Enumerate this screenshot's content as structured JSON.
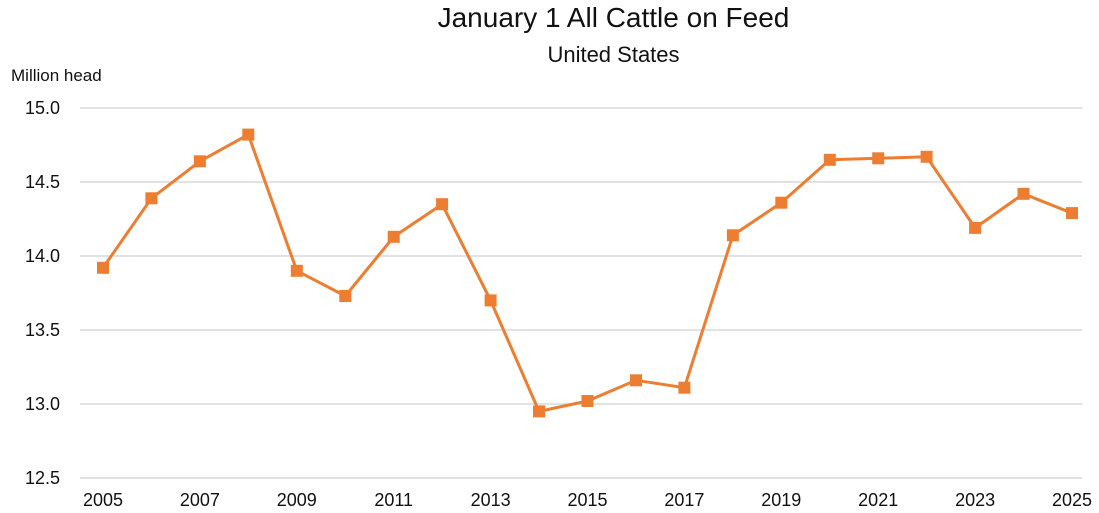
{
  "chart_data": {
    "type": "line",
    "title": "January 1 All Cattle on Feed",
    "subtitle": "United States",
    "ylabel": "Million head",
    "xlabel": "",
    "ylim": [
      12.5,
      15.0
    ],
    "yticks": [
      12.5,
      13.0,
      13.5,
      14.0,
      14.5,
      15.0
    ],
    "ytick_labels": [
      "12.5",
      "13.0",
      "13.5",
      "14.0",
      "14.5",
      "15.0"
    ],
    "xlim": [
      2005,
      2025
    ],
    "xticks": [
      2005,
      2007,
      2009,
      2011,
      2013,
      2015,
      2017,
      2019,
      2021,
      2023,
      2025
    ],
    "xtick_labels": [
      "2005",
      "2007",
      "2009",
      "2011",
      "2013",
      "2015",
      "2017",
      "2019",
      "2021",
      "2023",
      "2025"
    ],
    "grid": "horizontal",
    "line_color": "#ED7D31",
    "marker": "square",
    "x": [
      2005,
      2006,
      2007,
      2008,
      2009,
      2010,
      2011,
      2012,
      2013,
      2014,
      2015,
      2016,
      2017,
      2018,
      2019,
      2020,
      2021,
      2022,
      2023,
      2024,
      2025
    ],
    "values": [
      13.92,
      14.39,
      14.64,
      14.82,
      13.9,
      13.73,
      14.13,
      14.35,
      13.7,
      12.95,
      13.02,
      13.16,
      13.11,
      14.14,
      14.36,
      14.65,
      14.66,
      14.67,
      14.19,
      14.42,
      14.29
    ]
  }
}
